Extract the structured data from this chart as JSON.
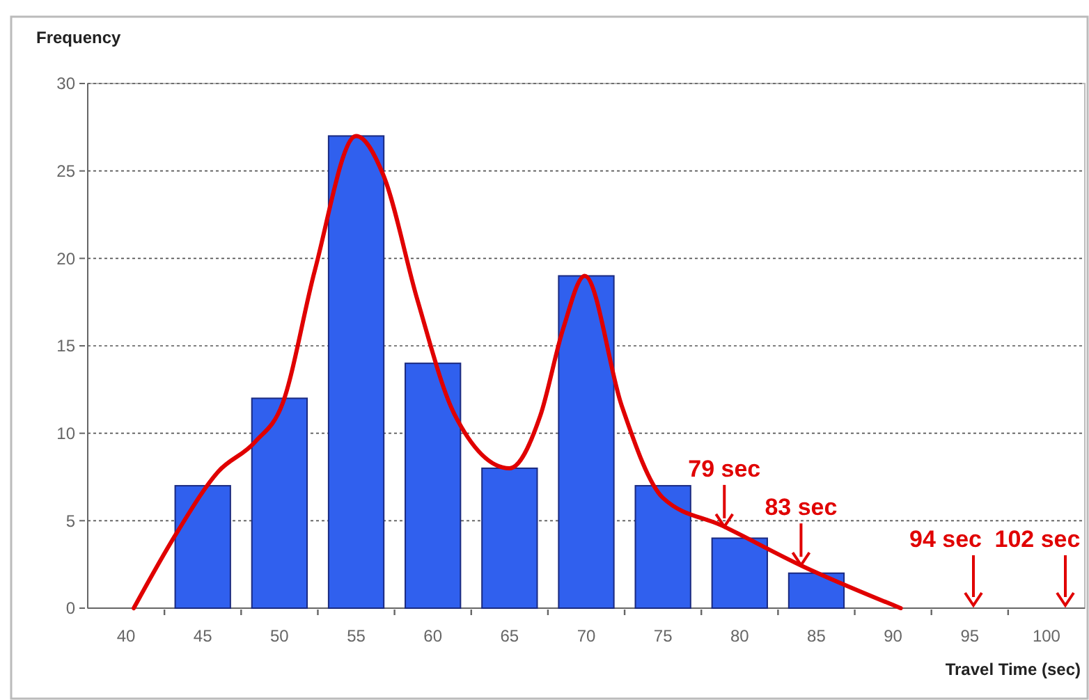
{
  "chart_data": {
    "type": "bar",
    "ylabel": "Frequency",
    "xlabel": "Travel Time (sec)",
    "xlim": [
      37.5,
      102.5
    ],
    "ylim": [
      0,
      30
    ],
    "xticks": [
      40,
      45,
      50,
      55,
      60,
      65,
      70,
      75,
      80,
      85,
      90,
      95,
      100
    ],
    "yticks": [
      0,
      5,
      10,
      15,
      20,
      25,
      30
    ],
    "grid": "y",
    "series": [
      {
        "color": "#3060ee",
        "x": [
          45,
          50,
          55,
          60,
          65,
          70,
          75,
          80,
          85
        ],
        "values": [
          7,
          12,
          27,
          14,
          8,
          19,
          7,
          4,
          2
        ]
      },
      {
        "type": "line",
        "color": "#e00000",
        "marker": "none",
        "line_style": "solid",
        "x": [
          40.5,
          43.3,
          46,
          48.4,
          50.2,
          52.3,
          55,
          56.8,
          59,
          61.4,
          65,
          67,
          68.5,
          69.9,
          72.3,
          75,
          78.9,
          84.1,
          90.5
        ],
        "values": [
          0,
          4.3,
          7.8,
          9.5,
          11.7,
          19.3,
          27,
          24.7,
          17.6,
          11.1,
          8,
          11,
          16,
          19,
          11.6,
          6.3,
          4.7,
          2.4,
          0
        ]
      }
    ],
    "annotations": [
      {
        "text": "79 sec",
        "x": 79,
        "y": 4.5
      },
      {
        "text": "83 sec",
        "x": 84,
        "y": 2.3
      },
      "94 sec",
      "102 sec"
    ]
  }
}
